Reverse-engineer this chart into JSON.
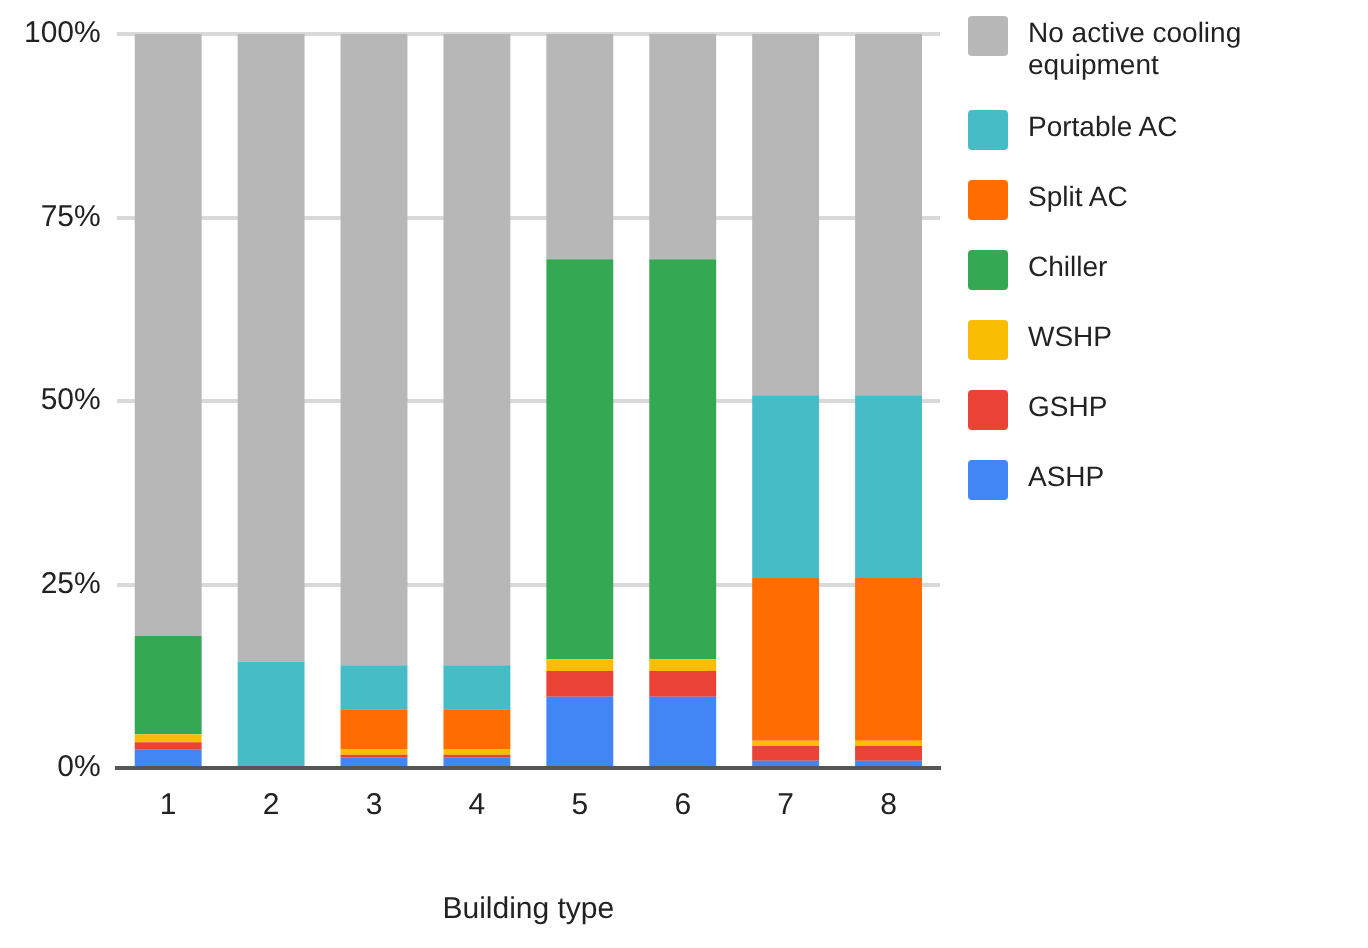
{
  "chart_data": {
    "type": "bar",
    "stacked": true,
    "xlabel": "Building type",
    "categories": [
      "1",
      "2",
      "3",
      "4",
      "5",
      "6",
      "7",
      "8"
    ],
    "series": [
      {
        "name": "ASHP",
        "color": "#4285f4",
        "values": [
          2.5,
          0,
          1.4,
          1.4,
          9.7,
          9.7,
          1,
          1
        ]
      },
      {
        "name": "GSHP",
        "color": "#ea4335",
        "values": [
          1,
          0,
          0.4,
          0.4,
          3.5,
          3.5,
          2,
          2
        ]
      },
      {
        "name": "WSHP",
        "color": "#fbbc04",
        "values": [
          1.1,
          0,
          0.8,
          0.8,
          1.6,
          1.6,
          0.7,
          0.7
        ]
      },
      {
        "name": "Chiller",
        "color": "#34a853",
        "values": [
          13.4,
          0,
          0,
          0,
          54.5,
          54.5,
          0,
          0
        ]
      },
      {
        "name": "Split AC",
        "color": "#ff6d01",
        "values": [
          0,
          0,
          5.4,
          5.4,
          0,
          0,
          22.2,
          22.2
        ]
      },
      {
        "name": "Portable AC",
        "color": "#46bdc6",
        "values": [
          0,
          14.5,
          6,
          6,
          0,
          0,
          24.9,
          24.9
        ]
      },
      {
        "name": "No active cooling equipment",
        "color": "#b7b7b7",
        "values": [
          82,
          85.5,
          86,
          86,
          30.7,
          30.7,
          49.2,
          49.2
        ]
      }
    ],
    "ylim": [
      0,
      100
    ],
    "yticks": [
      {
        "value": 0,
        "label": "0%"
      },
      {
        "value": 25,
        "label": "25%"
      },
      {
        "value": 50,
        "label": "50%"
      },
      {
        "value": 75,
        "label": "75%"
      },
      {
        "value": 100,
        "label": "100%"
      }
    ],
    "grid": "y",
    "legend": "right"
  }
}
